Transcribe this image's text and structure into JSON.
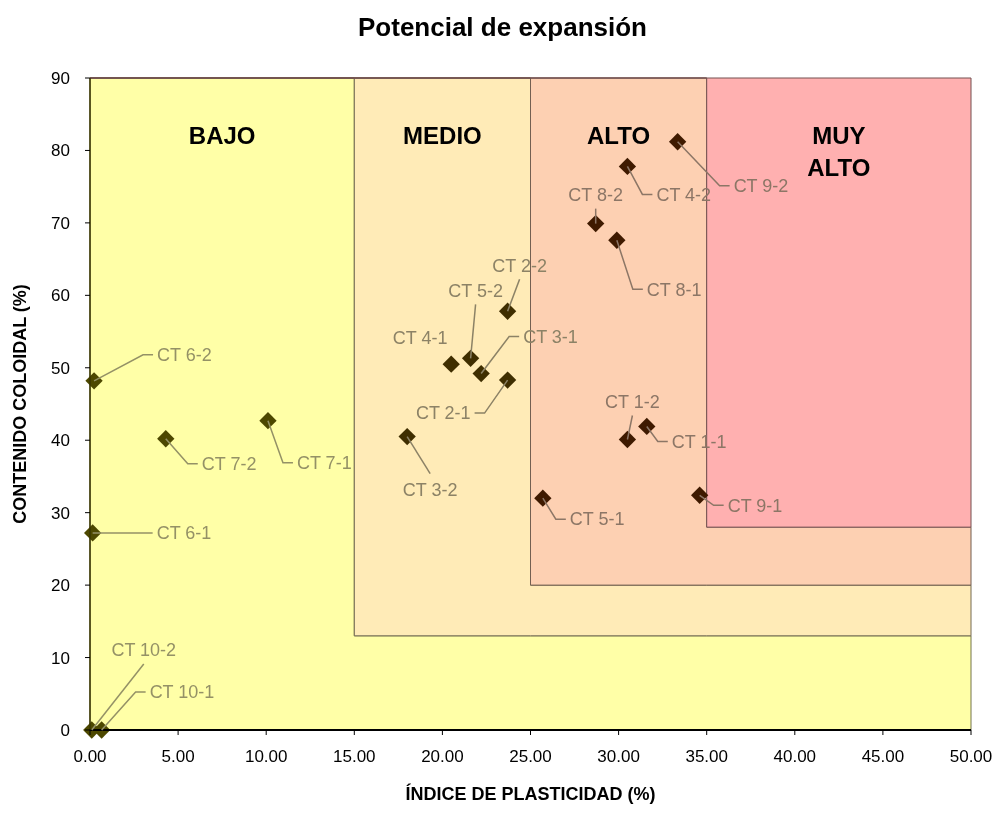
{
  "chart_data": {
    "type": "scatter",
    "title": "Potencial de expansión",
    "xlabel": "ÍNDICE DE PLASTICIDAD (%)",
    "ylabel": "CONTENIDO COLOIDAL (%)",
    "xlim": [
      0,
      50
    ],
    "ylim": [
      0,
      90
    ],
    "stacked": true,
    "xticks": [
      {
        "value": 0,
        "label": "0.00"
      },
      {
        "value": 5,
        "label": "5.00"
      },
      {
        "value": 10,
        "label": "10.00"
      },
      {
        "value": 15,
        "label": "15.00"
      },
      {
        "value": 20,
        "label": "20.00"
      },
      {
        "value": 25,
        "label": "25.00"
      },
      {
        "value": 30,
        "label": "30.00"
      },
      {
        "value": 35,
        "label": "35.00"
      },
      {
        "value": 40,
        "label": "40.00"
      },
      {
        "value": 45,
        "label": "45.00"
      },
      {
        "value": 50,
        "label": "50.00"
      }
    ],
    "yticks": [
      0,
      10,
      20,
      30,
      40,
      50,
      60,
      70,
      80,
      90
    ],
    "series": [
      {
        "type": "area",
        "name": "BAJO",
        "color": "#ffffa7",
        "x": [
          0,
          15,
          15,
          25,
          25,
          35,
          35,
          50
        ],
        "values": [
          90,
          90,
          13,
          13,
          13,
          13,
          13,
          13
        ]
      },
      {
        "type": "area",
        "name": "MEDIO",
        "color": "#ffebb7",
        "x": [
          0,
          15,
          15,
          25,
          25,
          35,
          35,
          50
        ],
        "values": [
          0,
          0,
          77,
          77,
          7,
          7,
          7,
          7
        ]
      },
      {
        "type": "area",
        "name": "ALTO",
        "color": "#fdd0b2",
        "x": [
          0,
          15,
          15,
          25,
          25,
          35,
          35,
          50
        ],
        "values": [
          0,
          0,
          0,
          0,
          70,
          70,
          8,
          8
        ]
      },
      {
        "type": "area",
        "name": "MUY ALTO",
        "color": "#ffb0b0",
        "x": [
          0,
          15,
          15,
          25,
          25,
          35,
          35,
          50
        ],
        "values": [
          0,
          0,
          0,
          0,
          0,
          0,
          62,
          62
        ]
      },
      {
        "type": "scatter",
        "marker": "diamond",
        "x": [
          31.6,
          30.5,
          23.7,
          23.7,
          22.2,
          18.0,
          20.5,
          30.5,
          25.7,
          21.6,
          0.15,
          0.23,
          10.1,
          4.3,
          29.9,
          28.7,
          34.6,
          33.35,
          0.66,
          0.1
        ],
        "values": [
          41.9,
          40.1,
          48.3,
          57.8,
          49.2,
          40.5,
          50.5,
          77.8,
          32.0,
          51.3,
          27.2,
          48.2,
          42.7,
          40.2,
          67.6,
          69.9,
          32.4,
          81.2,
          0,
          0
        ],
        "colors": [
          "#3f1a00",
          "#3f1a00",
          "#3f2e00",
          "#3f2e00",
          "#3f2e00",
          "#3f2e00",
          "#3f2e00",
          "#3f1a00",
          "#3f1a00",
          "#3f2e00",
          "#4d4800",
          "#4d4800",
          "#4d4800",
          "#4d4800",
          "#3f1a00",
          "#3f1a00",
          "#3f1a00",
          "#3f1a00",
          "#4d4800",
          "#4d4800"
        ]
      }
    ],
    "annotations": [
      {
        "text": "CT 1-1",
        "x": 31.6,
        "y": 41.9
      },
      {
        "text": "CT 1-2",
        "x": 30.5,
        "y": 40.1
      },
      {
        "text": "CT 2-1",
        "x": 23.7,
        "y": 48.3
      },
      {
        "text": "CT 2-2",
        "x": 23.7,
        "y": 57.8
      },
      {
        "text": "CT 3-1",
        "x": 22.2,
        "y": 49.2
      },
      {
        "text": "CT 3-2",
        "x": 18.0,
        "y": 40.5
      },
      {
        "text": "CT 4-1",
        "x": 20.5,
        "y": 50.5
      },
      {
        "text": "CT 4-2",
        "x": 30.5,
        "y": 77.8
      },
      {
        "text": "CT 5-1",
        "x": 25.7,
        "y": 32.0
      },
      {
        "text": "CT 5-2",
        "x": 21.6,
        "y": 51.3
      },
      {
        "text": "CT 6-1",
        "x": 0.15,
        "y": 27.2
      },
      {
        "text": "CT 6-2",
        "x": 0.23,
        "y": 48.2
      },
      {
        "text": "CT 7-1",
        "x": 10.1,
        "y": 42.7
      },
      {
        "text": "CT 7-2",
        "x": 4.3,
        "y": 40.2
      },
      {
        "text": "CT 8-1",
        "x": 29.9,
        "y": 67.6
      },
      {
        "text": "CT 8-2",
        "x": 28.7,
        "y": 69.9
      },
      {
        "text": "CT 9-1",
        "x": 34.6,
        "y": 32.4
      },
      {
        "text": "CT 9-2",
        "x": 33.35,
        "y": 81.2
      },
      {
        "text": "CT 10-1",
        "x": 0.66,
        "y": 0
      },
      {
        "text": "CT 10-2",
        "x": 0.1,
        "y": 0
      }
    ]
  }
}
